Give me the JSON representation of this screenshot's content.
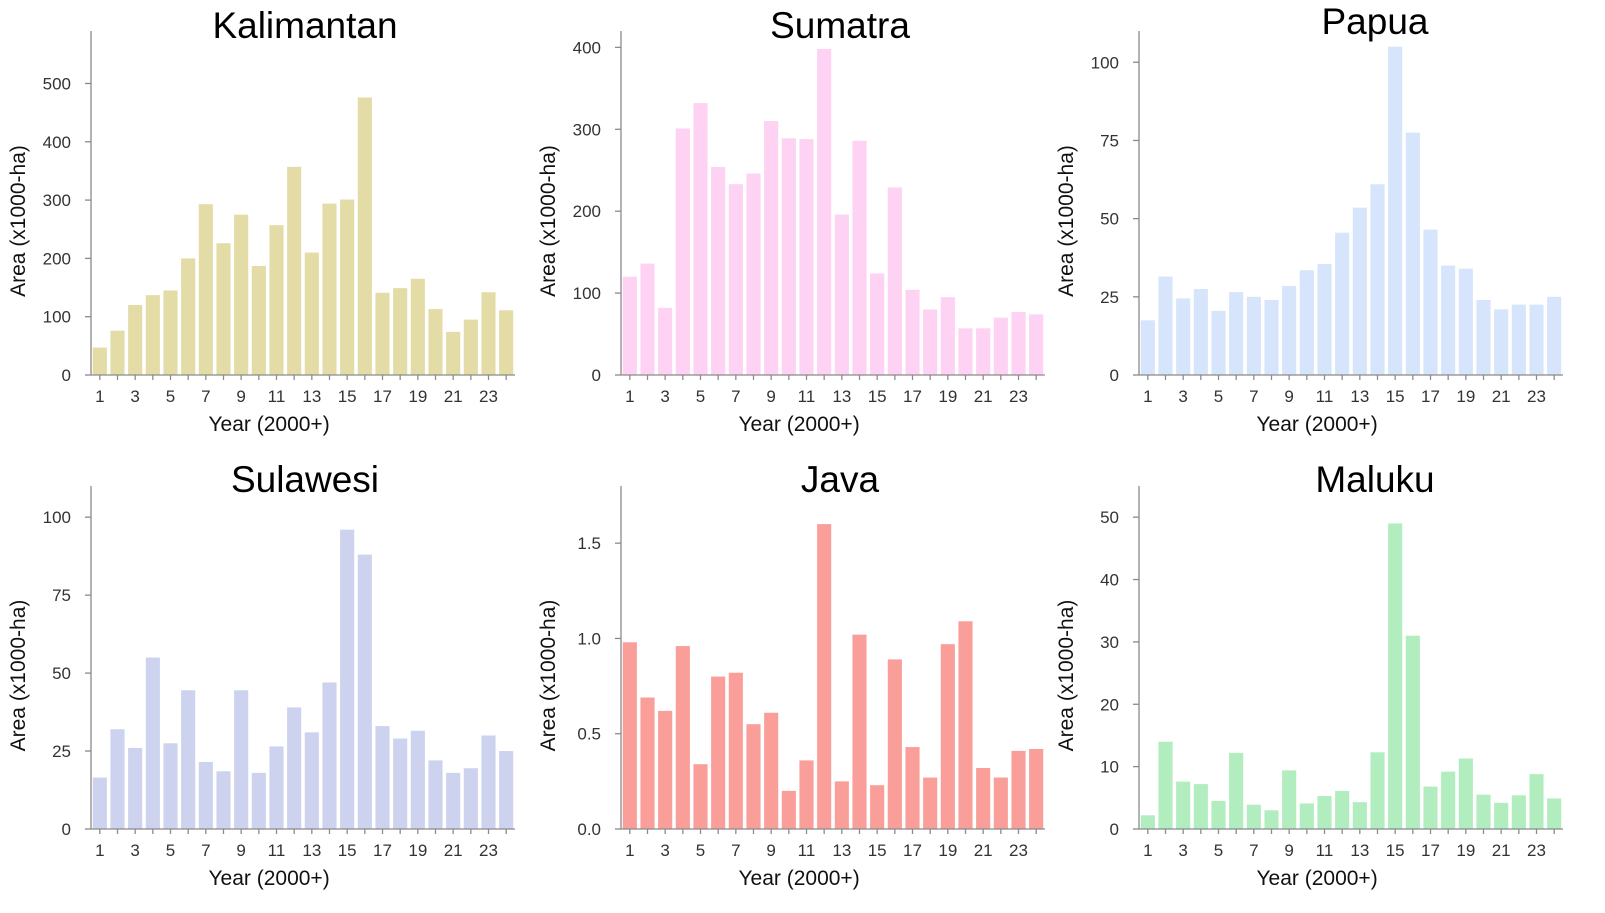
{
  "chart_data": [
    {
      "type": "bar",
      "title": "Kalimantan",
      "xlabel": "Year (2000+)",
      "ylabel": "Area (x1000-ha)",
      "x": [
        1,
        2,
        3,
        4,
        5,
        6,
        7,
        8,
        9,
        10,
        11,
        12,
        13,
        14,
        15,
        16,
        17,
        18,
        19,
        20,
        21,
        22,
        23,
        24
      ],
      "x_tick_labels": [
        "1",
        "3",
        "5",
        "7",
        "9",
        "11",
        "13",
        "15",
        "17",
        "19",
        "21",
        "23"
      ],
      "values": [
        47,
        76,
        120,
        137,
        145,
        200,
        293,
        226,
        275,
        187,
        257,
        357,
        210,
        294,
        301,
        476,
        141,
        149,
        165,
        113,
        74,
        95,
        142,
        111
      ],
      "ylim": [
        0,
        590
      ],
      "yticks": [
        0,
        100,
        200,
        300,
        400,
        500
      ],
      "ytick_labels": [
        "0",
        "100",
        "200",
        "300",
        "400",
        "500"
      ],
      "color": "#e4dca6"
    },
    {
      "type": "bar",
      "title": "Sumatra",
      "xlabel": "Year (2000+)",
      "ylabel": "Area (x1000-ha)",
      "x": [
        1,
        2,
        3,
        4,
        5,
        6,
        7,
        8,
        9,
        10,
        11,
        12,
        13,
        14,
        15,
        16,
        17,
        18,
        19,
        20,
        21,
        22,
        23,
        24
      ],
      "x_tick_labels": [
        "1",
        "3",
        "5",
        "7",
        "9",
        "11",
        "13",
        "15",
        "17",
        "19",
        "21",
        "23"
      ],
      "values": [
        120,
        136,
        82,
        301,
        332,
        254,
        233,
        246,
        310,
        289,
        288,
        398,
        196,
        286,
        124,
        229,
        104,
        80,
        95,
        57,
        57,
        70,
        77,
        74
      ],
      "ylim": [
        0,
        420
      ],
      "yticks": [
        0,
        100,
        200,
        300,
        400
      ],
      "ytick_labels": [
        "0",
        "100",
        "200",
        "300",
        "400"
      ],
      "color": "#fdd2f3"
    },
    {
      "type": "bar",
      "title": "Papua",
      "xlabel": "Year (2000+)",
      "ylabel": "Area (x1000-ha)",
      "x": [
        1,
        2,
        3,
        4,
        5,
        6,
        7,
        8,
        9,
        10,
        11,
        12,
        13,
        14,
        15,
        16,
        17,
        18,
        19,
        20,
        21,
        22,
        23,
        24
      ],
      "x_tick_labels": [
        "1",
        "3",
        "5",
        "7",
        "9",
        "11",
        "13",
        "15",
        "17",
        "19",
        "21",
        "23"
      ],
      "values": [
        17.5,
        31.5,
        24.5,
        27.5,
        20.5,
        26.5,
        25,
        24,
        28.5,
        33.5,
        35.5,
        45.5,
        53.5,
        61,
        105,
        77.5,
        46.5,
        35,
        34,
        24,
        21,
        22.5,
        22.5,
        25
      ],
      "ylim": [
        0,
        110
      ],
      "yticks": [
        0,
        25,
        50,
        75,
        100
      ],
      "ytick_labels": [
        "0",
        "25",
        "50",
        "75",
        "100"
      ],
      "color": "#d6e5fb"
    },
    {
      "type": "bar",
      "title": "Sulawesi",
      "xlabel": "Year (2000+)",
      "ylabel": "Area (x1000-ha)",
      "x": [
        1,
        2,
        3,
        4,
        5,
        6,
        7,
        8,
        9,
        10,
        11,
        12,
        13,
        14,
        15,
        16,
        17,
        18,
        19,
        20,
        21,
        22,
        23,
        24
      ],
      "x_tick_labels": [
        "1",
        "3",
        "5",
        "7",
        "9",
        "11",
        "13",
        "15",
        "17",
        "19",
        "21",
        "23"
      ],
      "values": [
        16.5,
        32,
        26,
        55,
        27.5,
        44.5,
        21.5,
        18.5,
        44.5,
        18,
        26.5,
        39,
        31,
        47,
        96,
        88,
        33,
        29,
        31.5,
        22,
        18,
        19.5,
        30,
        25
      ],
      "ylim": [
        0,
        110
      ],
      "yticks": [
        0,
        25,
        50,
        75,
        100
      ],
      "ytick_labels": [
        "0",
        "25",
        "50",
        "75",
        "100"
      ],
      "color": "#cdd3ef"
    },
    {
      "type": "bar",
      "title": "Java",
      "xlabel": "Year (2000+)",
      "ylabel": "Area (x1000-ha)",
      "x": [
        1,
        2,
        3,
        4,
        5,
        6,
        7,
        8,
        9,
        10,
        11,
        12,
        13,
        14,
        15,
        16,
        17,
        18,
        19,
        20,
        21,
        22,
        23,
        24
      ],
      "x_tick_labels": [
        "1",
        "3",
        "5",
        "7",
        "9",
        "11",
        "13",
        "15",
        "17",
        "19",
        "21",
        "23"
      ],
      "values": [
        0.98,
        0.69,
        0.62,
        0.96,
        0.34,
        0.8,
        0.82,
        0.55,
        0.61,
        0.2,
        0.36,
        1.6,
        0.25,
        1.02,
        0.23,
        0.89,
        0.43,
        0.27,
        0.97,
        1.09,
        0.32,
        0.27,
        0.41,
        0.42
      ],
      "ylim": [
        0,
        1.8
      ],
      "yticks": [
        0,
        0.5,
        1,
        1.5
      ],
      "ytick_labels": [
        "0.0",
        "0.5",
        "1.0",
        "1.5"
      ],
      "color": "#fa9e99"
    },
    {
      "type": "bar",
      "title": "Maluku",
      "xlabel": "Year (2000+)",
      "ylabel": "Area (x1000-ha)",
      "x": [
        1,
        2,
        3,
        4,
        5,
        6,
        7,
        8,
        9,
        10,
        11,
        12,
        13,
        14,
        15,
        16,
        17,
        18,
        19,
        20,
        21,
        22,
        23,
        24
      ],
      "x_tick_labels": [
        "1",
        "3",
        "5",
        "7",
        "9",
        "11",
        "13",
        "15",
        "17",
        "19",
        "21",
        "23"
      ],
      "values": [
        2.2,
        14,
        7.6,
        7.2,
        4.5,
        12.2,
        3.9,
        3,
        9.4,
        4.1,
        5.3,
        6.1,
        4.3,
        12.3,
        49,
        31,
        6.8,
        9.2,
        11.3,
        5.5,
        4.2,
        5.4,
        8.8,
        4.9
      ],
      "ylim": [
        0,
        55
      ],
      "yticks": [
        0,
        10,
        20,
        30,
        40,
        50
      ],
      "ytick_labels": [
        "0",
        "10",
        "20",
        "30",
        "40",
        "50"
      ],
      "color": "#b2edc0"
    }
  ]
}
